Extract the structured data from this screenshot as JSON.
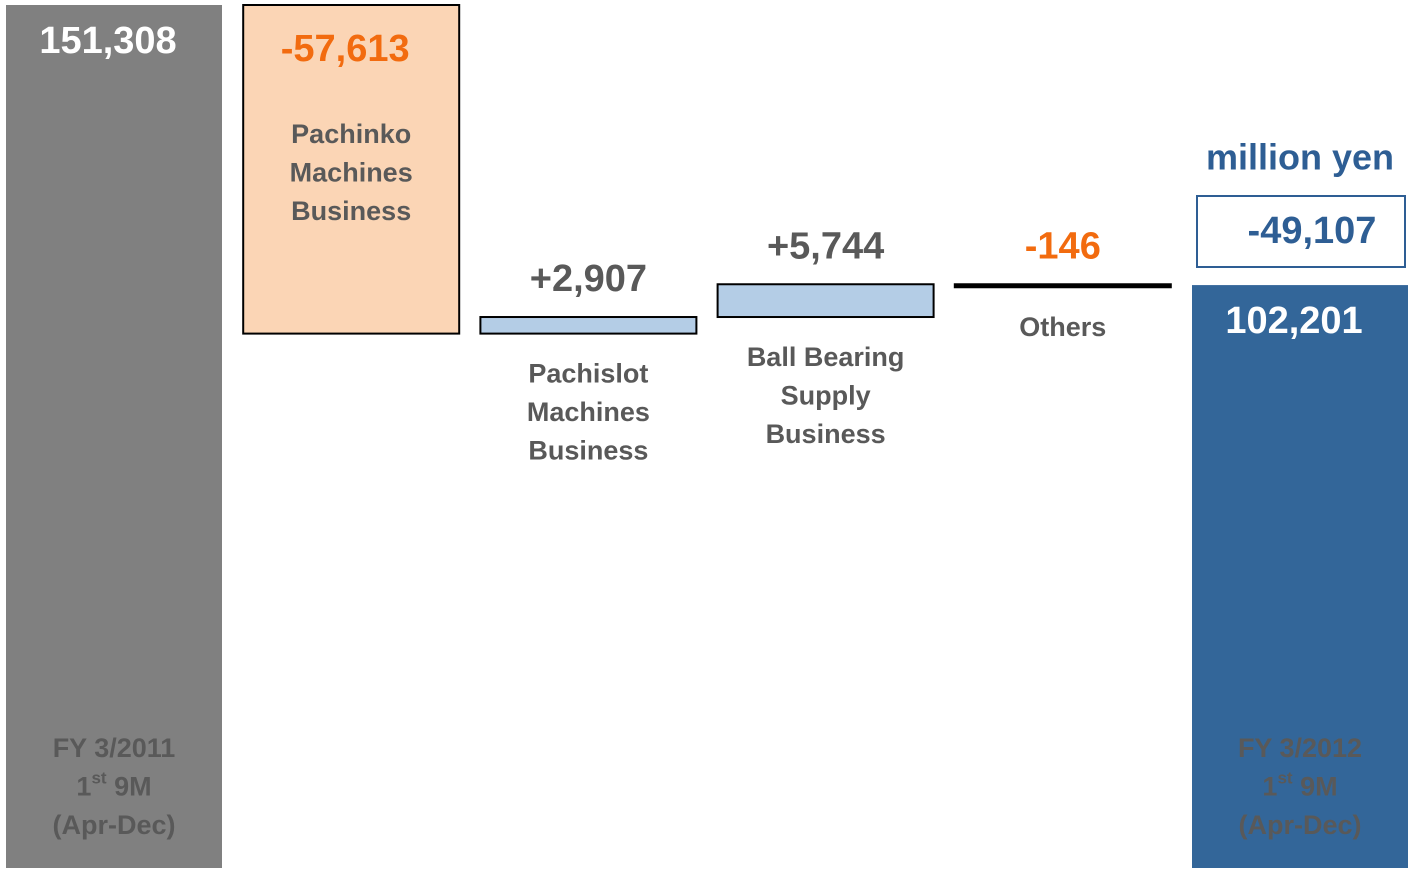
{
  "chart_data": {
    "type": "waterfall",
    "unit": "million yen",
    "categories": [
      [
        "FY 3/2011",
        "1st 9M",
        "(Apr-Dec)"
      ],
      [
        "Pachinko",
        "Machines",
        "Business"
      ],
      [
        "Pachislot",
        "Machines",
        "Business"
      ],
      [
        "Ball Bearing",
        "Supply",
        "Business"
      ],
      [
        "Others"
      ],
      [
        "FY 3/2012",
        "1st 9M",
        "(Apr-Dec)"
      ]
    ],
    "values": [
      151308,
      -57613,
      2907,
      5744,
      -146,
      102201
    ],
    "value_labels": [
      "151,308",
      "-57,613",
      "+2,907",
      "+5,744",
      "-146",
      "102,201"
    ],
    "colors": [
      "#808080",
      "#fbd5b5",
      "#b4cde6",
      "#b4cde6",
      "#000000",
      "#336699"
    ],
    "label_colors": [
      "#ffffff",
      "#f26b0f",
      "#595959",
      "#595959",
      "#f26b0f",
      "#ffffff"
    ],
    "total_change": {
      "value": -49107,
      "label": "-49,107"
    }
  }
}
